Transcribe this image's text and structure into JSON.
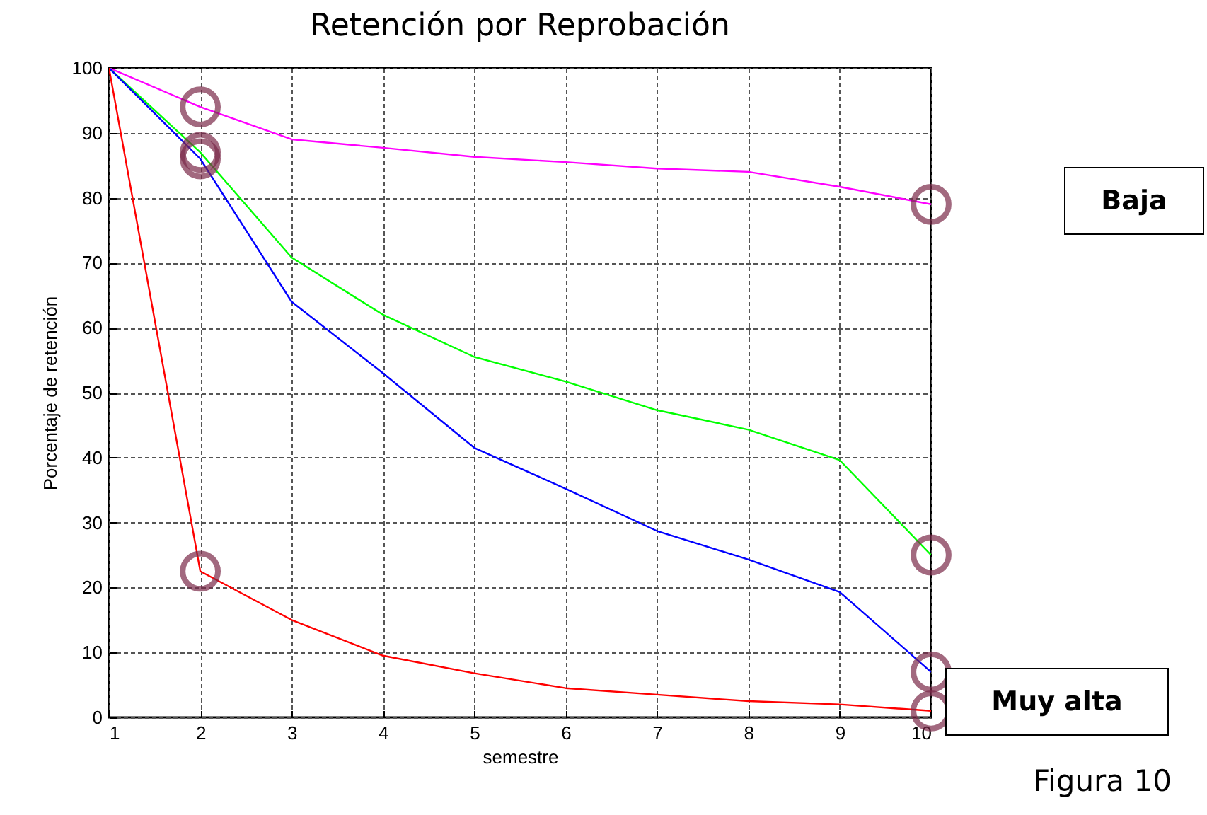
{
  "chart_data": {
    "type": "line",
    "title": "Retención por Reprobación",
    "xlabel": "semestre",
    "ylabel": "Porcentaje de retención",
    "x": [
      1,
      2,
      3,
      4,
      5,
      6,
      7,
      8,
      9,
      10
    ],
    "series": [
      {
        "color": "#ff00ff",
        "values": [
          100,
          94,
          89,
          87.7,
          86.3,
          85.5,
          84.5,
          84,
          81.7,
          79
        ]
      },
      {
        "color": "#00ff00",
        "values": [
          100,
          87,
          70.8,
          62,
          55.5,
          51.7,
          47.3,
          44.3,
          39.6,
          25
        ]
      },
      {
        "color": "#0000ff",
        "values": [
          100,
          86,
          64,
          53,
          41.5,
          35.2,
          28.7,
          24.3,
          19.3,
          7
        ]
      },
      {
        "color": "#ff0000",
        "values": [
          100,
          22.5,
          15,
          9.5,
          6.8,
          4.5,
          3.5,
          2.5,
          2,
          1
        ]
      }
    ],
    "xlim": [
      1,
      10
    ],
    "xticks": [
      1,
      2,
      3,
      4,
      5,
      6,
      7,
      8,
      9,
      10
    ],
    "ylim": [
      0,
      100
    ],
    "yticks": [
      0,
      10,
      20,
      30,
      40,
      50,
      60,
      70,
      80,
      90,
      100
    ],
    "grid": true,
    "annotations": [
      "Baja",
      "Muy alta",
      "Figura 10"
    ]
  }
}
